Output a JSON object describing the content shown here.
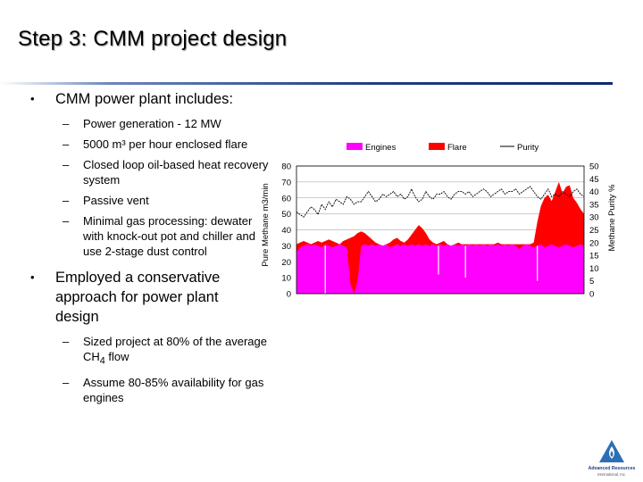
{
  "slide": {
    "title": "Step 3:  CMM project design"
  },
  "bullets": [
    {
      "text": "CMM power plant includes:",
      "subs": [
        {
          "text": "Power generation - 12 MW"
        },
        {
          "text": "5000 m³ per hour enclosed flare"
        },
        {
          "text": "Closed loop oil-based heat recovery system"
        },
        {
          "text": "Passive vent"
        },
        {
          "text": "Minimal gas processing: dewater with knock-out pot and chiller and use 2-stage dust control"
        }
      ]
    },
    {
      "text": "Employed a conservative approach for power plant design",
      "subs": [
        {
          "text_before": "Sized project at 80% of the average CH",
          "text_sub": "4",
          "text_after": " flow"
        },
        {
          "text": "Assume 80-85% availability for gas engines"
        }
      ]
    }
  ],
  "bullet_symbol": "•",
  "dash_symbol": "–",
  "chart_data": {
    "type": "area",
    "ylabel": "Pure Methane m3/min",
    "y2label": "Methane Purity %",
    "ylim": [
      0,
      80
    ],
    "y2lim": [
      0,
      50
    ],
    "yticks": [
      "0",
      "10",
      "20",
      "30",
      "40",
      "50",
      "60",
      "70",
      "80"
    ],
    "y2ticks": [
      "0",
      "5",
      "10",
      "15",
      "20",
      "25",
      "30",
      "35",
      "40",
      "45",
      "50"
    ],
    "grid": true,
    "legend_position": "top",
    "x": [
      0,
      2,
      4,
      6,
      8,
      10,
      12,
      14,
      16,
      18,
      20,
      22,
      24,
      26,
      28,
      30,
      32,
      34,
      36,
      38,
      40,
      42,
      44,
      46,
      48,
      50,
      52,
      54,
      56,
      58,
      60,
      62,
      64,
      66,
      68,
      70,
      72,
      74,
      76,
      78,
      80,
      82,
      84,
      86,
      88,
      90,
      92,
      94,
      96,
      98,
      100,
      102,
      104,
      106,
      108,
      110,
      112,
      114,
      116,
      118,
      120,
      122,
      124,
      126,
      128,
      130,
      132,
      134,
      136,
      138,
      140,
      142,
      144,
      146,
      148,
      150,
      152,
      154,
      156,
      158,
      160
    ],
    "series": [
      {
        "name": "Engines",
        "kind": "area",
        "color": "#ff00ff",
        "values": [
          26,
          29,
          30,
          31,
          30,
          31,
          30,
          29,
          31,
          30,
          29,
          30,
          31,
          30,
          29,
          6,
          0,
          8,
          30,
          31,
          30,
          31,
          30,
          31,
          30,
          31,
          29,
          30,
          31,
          30,
          31,
          30,
          31,
          30,
          31,
          30,
          31,
          30,
          31,
          30,
          31,
          30,
          31,
          30,
          31,
          30,
          31,
          30,
          31,
          30,
          31,
          30,
          31,
          30,
          31,
          30,
          31,
          30,
          31,
          30,
          31,
          30,
          28,
          30,
          31,
          30,
          29,
          30,
          31,
          29,
          30,
          31,
          30,
          29,
          30,
          31,
          30,
          29,
          30,
          31,
          30
        ],
        "dips": [
          {
            "x": 16,
            "value": 0
          },
          {
            "x": 79,
            "value": 12
          },
          {
            "x": 94,
            "value": 10
          },
          {
            "x": 134,
            "value": 8
          }
        ]
      },
      {
        "name": "Flare",
        "kind": "area",
        "color": "#ff0000",
        "values": [
          31,
          32,
          33,
          32,
          31,
          32,
          33,
          32,
          33,
          34,
          33,
          32,
          31,
          33,
          34,
          35,
          36,
          38,
          39,
          38,
          36,
          34,
          32,
          31,
          30,
          31,
          32,
          34,
          35,
          33,
          32,
          34,
          37,
          40,
          43,
          41,
          38,
          34,
          32,
          31,
          32,
          33,
          31,
          30,
          31,
          32,
          31,
          31,
          31,
          31,
          31,
          31,
          31,
          31,
          31,
          31,
          32,
          31,
          31,
          31,
          31,
          31,
          31,
          31,
          31,
          31,
          32,
          45,
          55,
          60,
          62,
          58,
          64,
          70,
          63,
          67,
          68,
          60,
          57,
          53,
          50
        ]
      },
      {
        "name": "Purity",
        "kind": "line",
        "color": "#000000",
        "axis": "y2",
        "values": [
          32,
          31,
          30,
          32,
          34,
          33,
          31,
          35,
          33,
          36,
          34,
          37,
          36,
          35,
          38,
          37,
          35,
          36,
          36,
          38,
          40,
          38,
          36,
          37,
          39,
          38,
          39,
          40,
          38,
          39,
          37,
          38,
          41,
          38,
          36,
          37,
          40,
          38,
          37,
          39,
          39,
          40,
          38,
          37,
          39,
          40,
          40,
          39,
          40,
          38,
          39,
          40,
          41,
          40,
          38,
          39,
          40,
          41,
          39,
          40,
          40,
          41,
          39,
          40,
          41,
          42,
          40,
          38,
          37,
          39,
          41,
          38,
          39,
          38,
          40,
          39,
          38,
          40,
          41,
          39,
          38
        ]
      }
    ]
  },
  "logo": {
    "line1": "Advanced Resources",
    "line2": "International, Inc."
  },
  "colors": {
    "title_rule": "#1f3f86",
    "logo_blue": "#2c6fb6"
  }
}
